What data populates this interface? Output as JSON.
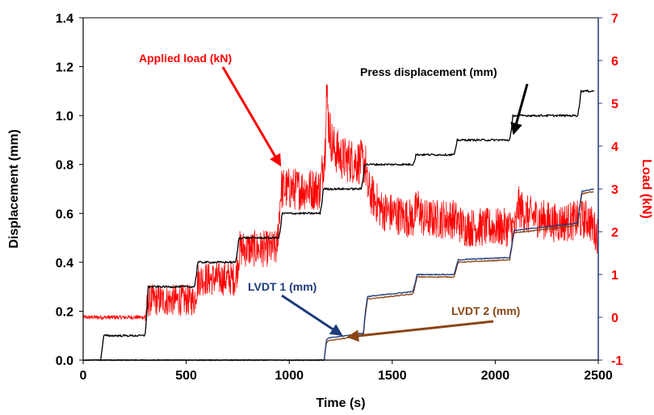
{
  "chart_data": {
    "type": "line",
    "title": "",
    "xlabel": "Time (s)",
    "ylabel_left": "Displacement (mm)",
    "ylabel_right": "Load (kN)",
    "xlim": [
      0,
      2500
    ],
    "ylim_left": [
      0,
      1.4
    ],
    "ylim_right": [
      -1,
      7
    ],
    "x_ticks": [
      "0",
      "500",
      "1000",
      "1500",
      "2000",
      "2500"
    ],
    "y_left_ticks": [
      "0.0",
      "0.2",
      "0.4",
      "0.6",
      "0.8",
      "1.0",
      "1.2",
      "1.4"
    ],
    "y_right_ticks": [
      "-1",
      "0",
      "1",
      "2",
      "3",
      "4",
      "5",
      "6",
      "7"
    ],
    "grid": false,
    "colors": {
      "press": "#000000",
      "load": "#ff0000",
      "lvdt1": "#1f3a7a",
      "lvdt2": "#8b4513",
      "right_axis": "#ff0000",
      "right_spine": "#1f3a7a"
    },
    "series": [
      {
        "name": "Press displacement (mm)",
        "axis": "left",
        "x": [
          85,
          100,
          300,
          310,
          315,
          540,
          550,
          555,
          740,
          750,
          755,
          950,
          960,
          965,
          1150,
          1160,
          1165,
          1350,
          1360,
          1365,
          1600,
          1610,
          1615,
          1800,
          1810,
          1815,
          2070,
          2080,
          2085,
          2400,
          2410,
          2415,
          2480
        ],
        "y": [
          0.0,
          0.1,
          0.1,
          0.2,
          0.3,
          0.3,
          0.35,
          0.4,
          0.4,
          0.45,
          0.5,
          0.5,
          0.55,
          0.6,
          0.6,
          0.65,
          0.7,
          0.7,
          0.75,
          0.8,
          0.8,
          0.82,
          0.84,
          0.84,
          0.87,
          0.9,
          0.9,
          0.95,
          1.0,
          1.0,
          1.05,
          1.1,
          1.1
        ]
      },
      {
        "name": "Applied load (kN)",
        "axis": "right",
        "x": [
          0,
          300,
          320,
          540,
          560,
          740,
          760,
          940,
          960,
          1150,
          1175,
          1180,
          1190,
          1210,
          1260,
          1370,
          1380,
          1450,
          1600,
          1625,
          1650,
          1800,
          1850,
          2000,
          2100,
          2110,
          2150,
          2300,
          2450,
          2500
        ],
        "y": [
          0.0,
          0.0,
          0.4,
          0.4,
          0.9,
          0.9,
          1.6,
          1.6,
          3.0,
          3.0,
          4.0,
          5.4,
          4.6,
          4.0,
          3.7,
          3.6,
          3.0,
          2.5,
          2.3,
          2.6,
          2.3,
          2.3,
          2.1,
          2.1,
          2.1,
          2.6,
          2.4,
          2.2,
          2.3,
          1.9
        ]
      },
      {
        "name": "LVDT 1 (mm)",
        "axis": "left",
        "x": [
          0,
          1170,
          1180,
          1190,
          1360,
          1370,
          1380,
          1600,
          1610,
          1620,
          1800,
          1810,
          1820,
          2070,
          2080,
          2090,
          2400,
          2410,
          2420,
          2480
        ],
        "y": [
          0.0,
          0.0,
          0.08,
          0.09,
          0.11,
          0.2,
          0.26,
          0.28,
          0.31,
          0.35,
          0.35,
          0.38,
          0.41,
          0.42,
          0.47,
          0.53,
          0.56,
          0.63,
          0.69,
          0.7
        ]
      },
      {
        "name": "LVDT 2 (mm)",
        "axis": "left",
        "x": [
          0,
          1170,
          1180,
          1190,
          1360,
          1370,
          1380,
          1600,
          1610,
          1620,
          1800,
          1810,
          1820,
          2070,
          2080,
          2090,
          2400,
          2410,
          2420,
          2480
        ],
        "y": [
          0.0,
          0.0,
          0.07,
          0.08,
          0.1,
          0.19,
          0.25,
          0.27,
          0.3,
          0.34,
          0.34,
          0.37,
          0.4,
          0.41,
          0.46,
          0.52,
          0.55,
          0.62,
          0.68,
          0.69
        ]
      }
    ],
    "annotations": [
      {
        "text": "Applied load (kN)",
        "color": "#ff0000",
        "target_x": 955,
        "target_y_left": 0.8
      },
      {
        "text": "Press displacement (mm)",
        "color": "#000000",
        "target_x": 2090,
        "target_y_left": 0.93
      },
      {
        "text": "LVDT 1 (mm)",
        "color": "#1f3a7a",
        "target_x": 1250,
        "target_y_left": 0.105
      },
      {
        "text": "LVDT 2 (mm)",
        "color": "#8b4513",
        "target_x": 1290,
        "target_y_left": 0.095
      }
    ]
  }
}
